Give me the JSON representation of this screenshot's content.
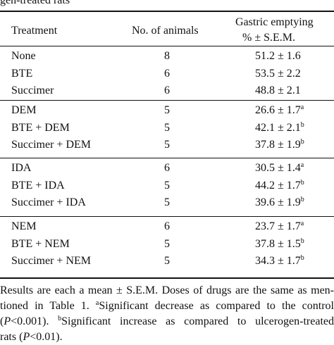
{
  "caption_fragment": "gen-treated rats",
  "headers": {
    "treatment": "Treatment",
    "animals": "No. of animals",
    "emptying_line1": "Gastric emptying",
    "emptying_line2": "% ± S.E.M."
  },
  "groups": [
    {
      "rows": [
        {
          "treatment": "None",
          "animals": "8",
          "value": "51.2 ± 1.6",
          "sup": ""
        },
        {
          "treatment": "BTE",
          "animals": "6",
          "value": "53.5 ± 2.2",
          "sup": ""
        },
        {
          "treatment": "Succimer",
          "animals": "6",
          "value": "48.8 ± 2.1",
          "sup": ""
        }
      ]
    },
    {
      "rows": [
        {
          "treatment": "DEM",
          "animals": "5",
          "value": "26.6 ± 1.7",
          "sup": "a"
        },
        {
          "treatment": "BTE + DEM",
          "animals": "5",
          "value": "42.1 ± 2.1",
          "sup": "b"
        },
        {
          "treatment": "Succimer + DEM",
          "animals": "5",
          "value": "37.8 ± 1.9",
          "sup": "b"
        }
      ]
    },
    {
      "rows": [
        {
          "treatment": "IDA",
          "animals": "6",
          "value": "30.5 ± 1.4",
          "sup": "a"
        },
        {
          "treatment": "BTE + IDA",
          "animals": "5",
          "value": "44.2 ± 1.7",
          "sup": "b"
        },
        {
          "treatment": "Succimer + IDA",
          "animals": "5",
          "value": "39.6 ± 1.9",
          "sup": "b"
        }
      ]
    },
    {
      "rows": [
        {
          "treatment": "NEM",
          "animals": "6",
          "value": "23.7 ± 1.7",
          "sup": "a"
        },
        {
          "treatment": "BTE + NEM",
          "animals": "5",
          "value": "37.8 ± 1.5",
          "sup": "b"
        },
        {
          "treatment": "Succimer + NEM",
          "animals": "5",
          "value": "34.3 ± 1.7",
          "sup": "b"
        }
      ]
    }
  ],
  "footnote": {
    "line1": "Results are each a mean ± S.E.M. Doses of drugs are the same as men-",
    "line2_a": "tioned in Table 1. ",
    "line2_sup": "a",
    "line2_b": "Significant decrease as compared to the control",
    "line3_a": "(",
    "line3_p": "P",
    "line3_b": "<0.001). ",
    "line3_sup": "b",
    "line3_c": "Significant increase as compared to ulcerogen-treated",
    "line4_a": "rats (",
    "line4_p": "P",
    "line4_b": "<0.01)."
  }
}
